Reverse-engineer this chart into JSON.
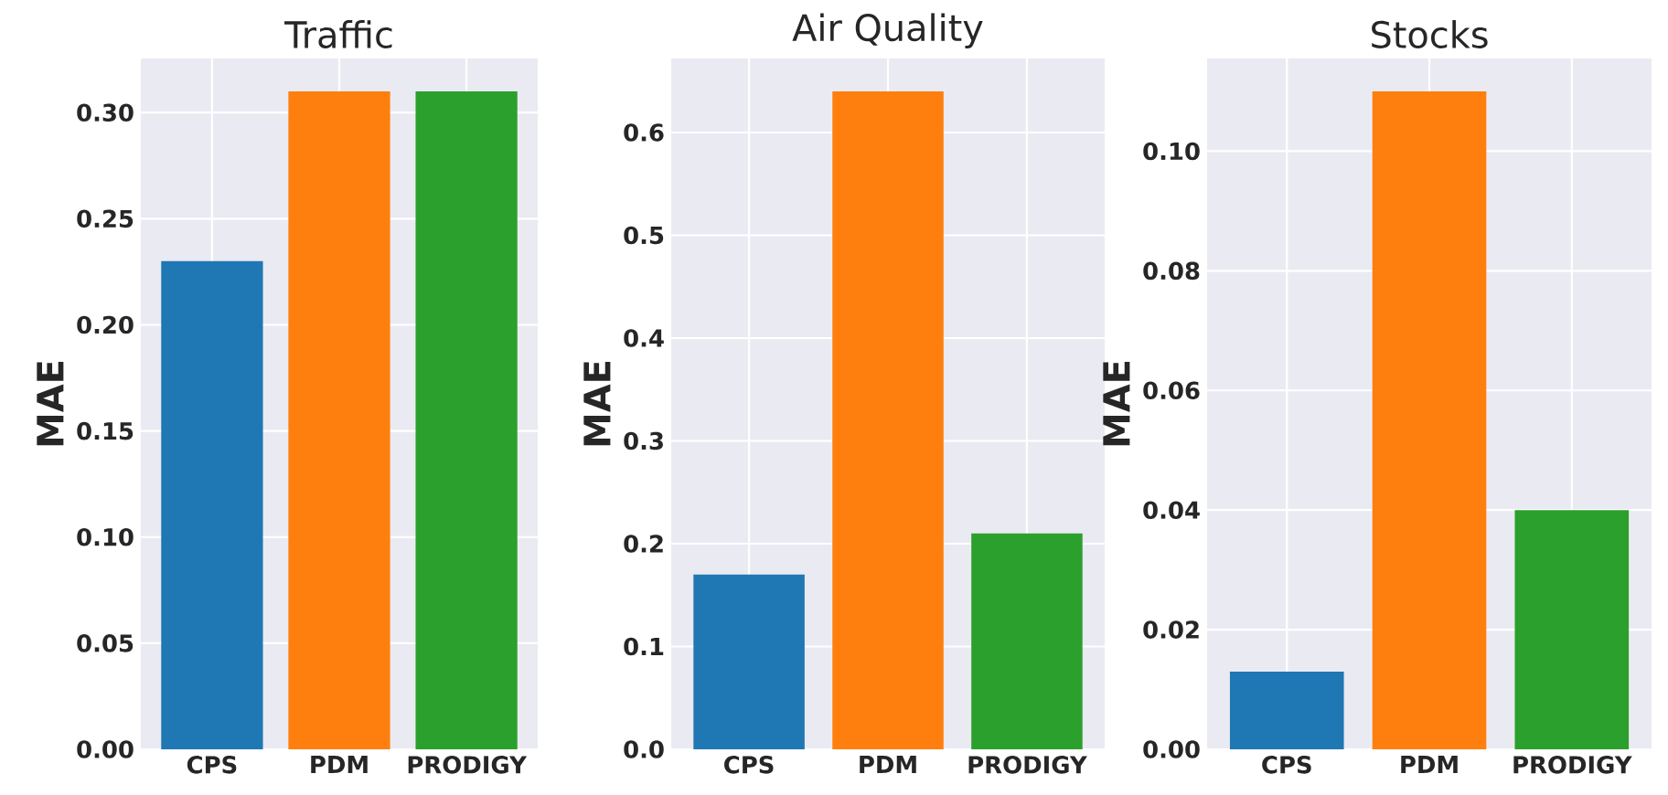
{
  "chart_data": [
    {
      "type": "bar",
      "title": "Traffic",
      "ylabel": "MAE",
      "categories": [
        "CPS",
        "PDM",
        "PRODIGY"
      ],
      "values": [
        0.23,
        0.31,
        0.31
      ],
      "colors": [
        "#1f77b4",
        "#ff7f0e",
        "#2ca02c"
      ],
      "ylim": [
        0,
        0.3255
      ],
      "yticks": [
        {
          "value": 0,
          "label": "0.00"
        },
        {
          "value": 0.05,
          "label": "0.05"
        },
        {
          "value": 0.1,
          "label": "0.10"
        },
        {
          "value": 0.15,
          "label": "0.15"
        },
        {
          "value": 0.2,
          "label": "0.20"
        },
        {
          "value": 0.25,
          "label": "0.25"
        },
        {
          "value": 0.3,
          "label": "0.30"
        }
      ],
      "grid": true
    },
    {
      "type": "bar",
      "title": "Air Quality",
      "ylabel": "MAE",
      "categories": [
        "CPS",
        "PDM",
        "PRODIGY"
      ],
      "values": [
        0.17,
        0.64,
        0.21
      ],
      "colors": [
        "#1f77b4",
        "#ff7f0e",
        "#2ca02c"
      ],
      "ylim": [
        0,
        0.672
      ],
      "yticks": [
        {
          "value": 0,
          "label": "0.0"
        },
        {
          "value": 0.1,
          "label": "0.1"
        },
        {
          "value": 0.2,
          "label": "0.2"
        },
        {
          "value": 0.3,
          "label": "0.3"
        },
        {
          "value": 0.4,
          "label": "0.4"
        },
        {
          "value": 0.5,
          "label": "0.5"
        },
        {
          "value": 0.6,
          "label": "0.6"
        }
      ],
      "grid": true
    },
    {
      "type": "bar",
      "title": "Stocks",
      "ylabel": "MAE",
      "categories": [
        "CPS",
        "PDM",
        "PRODIGY"
      ],
      "values": [
        0.013,
        0.11,
        0.04
      ],
      "colors": [
        "#1f77b4",
        "#ff7f0e",
        "#2ca02c"
      ],
      "ylim": [
        0,
        0.1155
      ],
      "yticks": [
        {
          "value": 0,
          "label": "0.00"
        },
        {
          "value": 0.02,
          "label": "0.02"
        },
        {
          "value": 0.04,
          "label": "0.04"
        },
        {
          "value": 0.06,
          "label": "0.06"
        },
        {
          "value": 0.08,
          "label": "0.08"
        },
        {
          "value": 0.1,
          "label": "0.10"
        }
      ],
      "grid": true
    }
  ]
}
